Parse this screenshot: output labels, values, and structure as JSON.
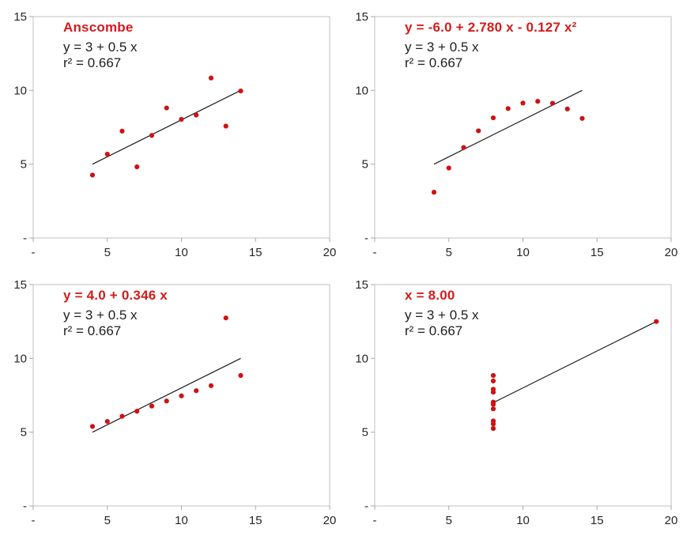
{
  "colors": {
    "accent_red": "#d31c1c",
    "dot_red": "#cf1212",
    "text_dark": "#1f1f1f",
    "tick_text": "#262626",
    "axis_gray": "#a8a8a8",
    "frame_gray": "#c2c2c2",
    "fit_line_black": "#1a1a1a",
    "background": "#ffffff"
  },
  "chart_data": [
    {
      "type": "scatter",
      "panel": "top-left",
      "title": "Anscombe",
      "model_label": "y = 3 + 0.5 x",
      "r2_label": "r² = 0.667",
      "x": [
        10,
        8,
        13,
        9,
        11,
        14,
        6,
        4,
        12,
        7,
        5
      ],
      "y": [
        8.04,
        6.95,
        7.58,
        8.81,
        8.33,
        9.96,
        7.24,
        4.26,
        10.84,
        4.82,
        5.68
      ],
      "fit_line": {
        "x1": 4,
        "y1": 5,
        "x2": 14,
        "y2": 10
      },
      "xlim": [
        0,
        20
      ],
      "ylim": [
        0,
        15
      ],
      "xticks": [
        0,
        5,
        10,
        15,
        20
      ],
      "yticks": [
        0,
        5,
        10,
        15
      ],
      "xtick_labels": [
        "-",
        "5",
        "10",
        "15",
        "20"
      ],
      "ytick_labels": [
        "-",
        "5",
        "10",
        "15"
      ],
      "grid": "off",
      "legend": "none"
    },
    {
      "type": "scatter",
      "panel": "top-right",
      "title": "y = -6.0 + 2.780 x - 0.127 x²",
      "model_label": "y = 3 + 0.5 x",
      "r2_label": "r² = 0.667",
      "x": [
        10,
        8,
        13,
        9,
        11,
        14,
        6,
        4,
        12,
        7,
        5
      ],
      "y": [
        9.14,
        8.14,
        8.74,
        8.77,
        9.26,
        8.1,
        6.13,
        3.1,
        9.13,
        7.26,
        4.74
      ],
      "fit_line": {
        "x1": 4,
        "y1": 5,
        "x2": 14,
        "y2": 10
      },
      "xlim": [
        0,
        20
      ],
      "ylim": [
        0,
        15
      ],
      "xticks": [
        0,
        5,
        10,
        15,
        20
      ],
      "yticks": [
        0,
        5,
        10,
        15
      ],
      "xtick_labels": [
        "-",
        "5",
        "10",
        "15",
        "20"
      ],
      "ytick_labels": [
        "-",
        "5",
        "10",
        "15"
      ],
      "grid": "off",
      "legend": "none"
    },
    {
      "type": "scatter",
      "panel": "bottom-left",
      "title": "y = 4.0 + 0.346 x",
      "model_label": "y = 3 + 0.5 x",
      "r2_label": "r² = 0.667",
      "x": [
        10,
        8,
        13,
        9,
        11,
        14,
        6,
        4,
        12,
        7,
        5
      ],
      "y": [
        7.46,
        6.77,
        12.74,
        7.11,
        7.81,
        8.84,
        6.08,
        5.39,
        8.15,
        6.42,
        5.73
      ],
      "fit_line": {
        "x1": 4,
        "y1": 5,
        "x2": 14,
        "y2": 10
      },
      "xlim": [
        0,
        20
      ],
      "ylim": [
        0,
        15
      ],
      "xticks": [
        0,
        5,
        10,
        15,
        20
      ],
      "yticks": [
        0,
        5,
        10,
        15
      ],
      "xtick_labels": [
        "-",
        "5",
        "10",
        "15",
        "20"
      ],
      "ytick_labels": [
        "-",
        "5",
        "10",
        "15"
      ],
      "grid": "off",
      "legend": "none"
    },
    {
      "type": "scatter",
      "panel": "bottom-right",
      "title": "x = 8.00",
      "model_label": "y = 3 + 0.5 x",
      "r2_label": "r² = 0.667",
      "x": [
        8,
        8,
        8,
        8,
        8,
        8,
        8,
        19,
        8,
        8,
        8
      ],
      "y": [
        6.58,
        5.76,
        7.71,
        8.84,
        8.47,
        7.04,
        5.25,
        12.5,
        5.56,
        7.91,
        6.89
      ],
      "fit_line": {
        "x1": 8,
        "y1": 7,
        "x2": 19,
        "y2": 12.5
      },
      "xlim": [
        0,
        20
      ],
      "ylim": [
        0,
        15
      ],
      "xticks": [
        0,
        5,
        10,
        15,
        20
      ],
      "yticks": [
        0,
        5,
        10,
        15
      ],
      "xtick_labels": [
        "-",
        "5",
        "10",
        "15",
        "20"
      ],
      "ytick_labels": [
        "-",
        "5",
        "10",
        "15"
      ],
      "grid": "off",
      "legend": "none"
    }
  ]
}
